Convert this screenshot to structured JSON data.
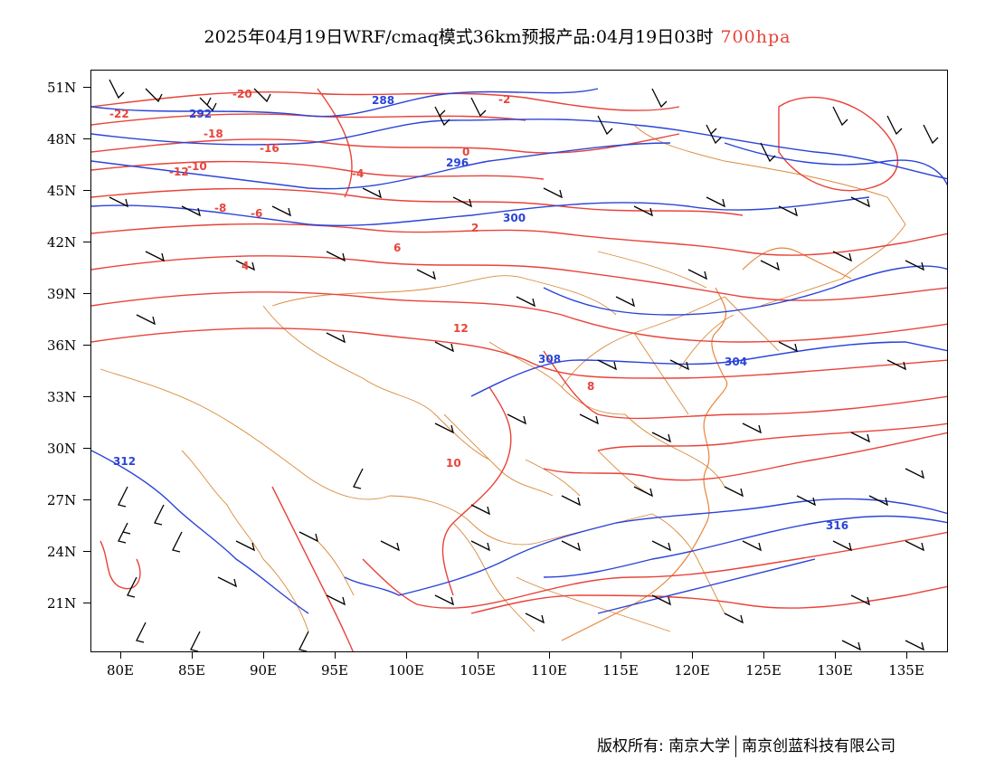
{
  "title": {
    "main": "2025年04月19日WRF/cmaq模式36km预报产品:04月19日03时",
    "level": "700hpa"
  },
  "colors": {
    "temperature_contour": "#e8433a",
    "geopotential_contour": "#2a44d8",
    "border": "#d98a3a",
    "wind_barb": "#000000"
  },
  "axes": {
    "lat_labels": [
      "51N",
      "48N",
      "45N",
      "42N",
      "39N",
      "36N",
      "33N",
      "30N",
      "27N",
      "24N",
      "21N"
    ],
    "lon_labels": [
      "80E",
      "85E",
      "90E",
      "95E",
      "100E",
      "105E",
      "110E",
      "115E",
      "120E",
      "125E",
      "130E",
      "135E"
    ]
  },
  "contour_labels": {
    "temperature": [
      "-22",
      "-20",
      "-18",
      "-16",
      "-12",
      "-10",
      "-8",
      "-6",
      "-4",
      "-2",
      "0",
      "2",
      "4",
      "6",
      "8",
      "10",
      "12"
    ],
    "geopotential": [
      "288",
      "292",
      "296",
      "300",
      "304",
      "308",
      "312",
      "316"
    ]
  },
  "footer": {
    "copyright": "版权所有: 南京大学",
    "company": "南京创蓝科技有限公司"
  }
}
